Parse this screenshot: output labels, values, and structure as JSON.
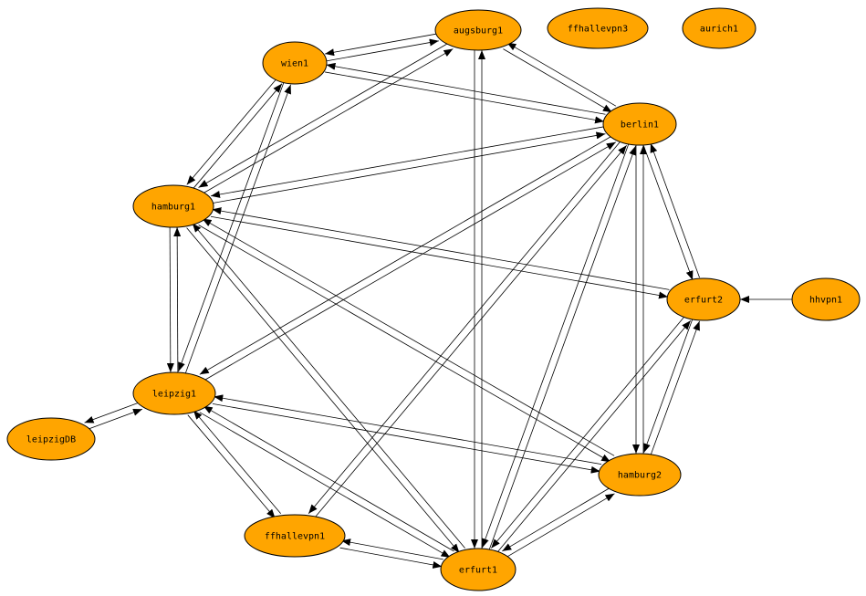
{
  "graph": {
    "node_color": "#FFA500",
    "edge_color": "#000000",
    "directed": true,
    "nodes": [
      "augsburg1",
      "ffhallevpn3",
      "aurich1",
      "wien1",
      "berlin1",
      "hamburg1",
      "erfurt2",
      "hhvpn1",
      "leipzig1",
      "leipzigDB",
      "hamburg2",
      "ffhallevpn1",
      "erfurt1"
    ],
    "edges": [
      [
        "wien1",
        "augsburg1"
      ],
      [
        "augsburg1",
        "wien1"
      ],
      [
        "augsburg1",
        "berlin1"
      ],
      [
        "berlin1",
        "augsburg1"
      ],
      [
        "berlin1",
        "wien1"
      ],
      [
        "wien1",
        "berlin1"
      ],
      [
        "augsburg1",
        "hamburg1"
      ],
      [
        "hamburg1",
        "augsburg1"
      ],
      [
        "hamburg1",
        "wien1"
      ],
      [
        "wien1",
        "hamburg1"
      ],
      [
        "wien1",
        "leipzig1"
      ],
      [
        "leipzig1",
        "wien1"
      ],
      [
        "berlin1",
        "hamburg1"
      ],
      [
        "hamburg1",
        "berlin1"
      ],
      [
        "augsburg1",
        "erfurt1"
      ],
      [
        "erfurt1",
        "augsburg1"
      ],
      [
        "berlin1",
        "leipzig1"
      ],
      [
        "leipzig1",
        "berlin1"
      ],
      [
        "berlin1",
        "erfurt2"
      ],
      [
        "erfurt2",
        "berlin1"
      ],
      [
        "berlin1",
        "hamburg2"
      ],
      [
        "hamburg2",
        "berlin1"
      ],
      [
        "berlin1",
        "erfurt1"
      ],
      [
        "erfurt1",
        "berlin1"
      ],
      [
        "ffhallevpn1",
        "berlin1"
      ],
      [
        "berlin1",
        "ffhallevpn1"
      ],
      [
        "hamburg1",
        "erfurt2"
      ],
      [
        "erfurt2",
        "hamburg1"
      ],
      [
        "hamburg1",
        "leipzig1"
      ],
      [
        "leipzig1",
        "hamburg1"
      ],
      [
        "hamburg1",
        "hamburg2"
      ],
      [
        "hamburg2",
        "hamburg1"
      ],
      [
        "hamburg1",
        "erfurt1"
      ],
      [
        "erfurt1",
        "hamburg1"
      ],
      [
        "hhvpn1",
        "erfurt2"
      ],
      [
        "erfurt2",
        "hamburg2"
      ],
      [
        "hamburg2",
        "erfurt2"
      ],
      [
        "erfurt2",
        "erfurt1"
      ],
      [
        "erfurt1",
        "erfurt2"
      ],
      [
        "leipzig1",
        "leipzigDB"
      ],
      [
        "leipzigDB",
        "leipzig1"
      ],
      [
        "leipzig1",
        "hamburg2"
      ],
      [
        "hamburg2",
        "leipzig1"
      ],
      [
        "leipzig1",
        "ffhallevpn1"
      ],
      [
        "ffhallevpn1",
        "leipzig1"
      ],
      [
        "leipzig1",
        "erfurt1"
      ],
      [
        "erfurt1",
        "leipzig1"
      ],
      [
        "ffhallevpn1",
        "erfurt1"
      ],
      [
        "erfurt1",
        "ffhallevpn1"
      ],
      [
        "hamburg2",
        "erfurt1"
      ],
      [
        "erfurt1",
        "hamburg2"
      ]
    ]
  }
}
